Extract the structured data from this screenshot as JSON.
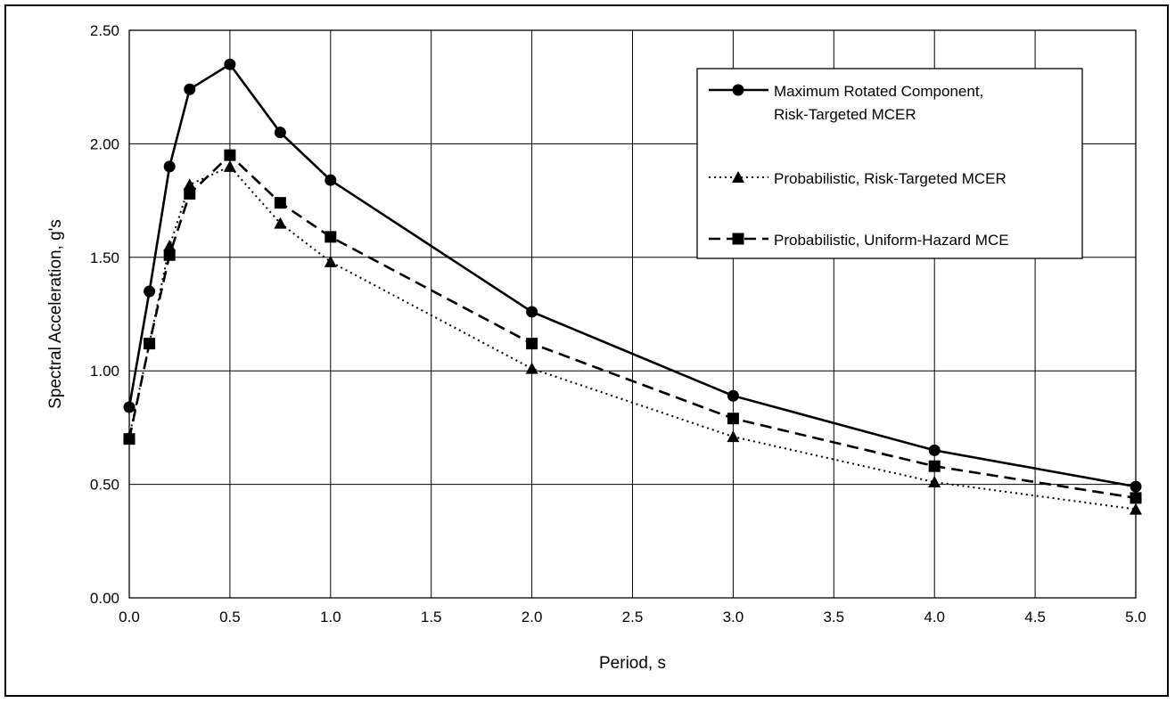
{
  "chart_data": {
    "type": "line",
    "title": "",
    "xlabel": "Period, s",
    "ylabel": "Spectral Acceleration, g's",
    "xlim": [
      0.0,
      5.0
    ],
    "ylim": [
      0.0,
      2.5
    ],
    "x_ticks": [
      "0.0",
      "0.5",
      "1.0",
      "1.5",
      "2.0",
      "2.5",
      "3.0",
      "3.5",
      "4.0",
      "4.5",
      "5.0"
    ],
    "y_ticks": [
      "0.00",
      "0.50",
      "1.00",
      "1.50",
      "2.00",
      "2.50"
    ],
    "x_tick_values": [
      0.0,
      0.5,
      1.0,
      1.5,
      2.0,
      2.5,
      3.0,
      3.5,
      4.0,
      4.5,
      5.0
    ],
    "y_tick_values": [
      0.0,
      0.5,
      1.0,
      1.5,
      2.0,
      2.5
    ],
    "grid": true,
    "legend_position": "top-right",
    "series": [
      {
        "name": "Maximum Rotated Component, Risk-Targeted MCER",
        "name_lines": [
          "Maximum Rotated Component,",
          "Risk-Targeted MCER"
        ],
        "marker": "circle",
        "line_style": "solid",
        "color": "#000000",
        "points": [
          [
            0.0,
            0.84
          ],
          [
            0.1,
            1.35
          ],
          [
            0.2,
            1.9
          ],
          [
            0.3,
            2.24
          ],
          [
            0.5,
            2.35
          ],
          [
            0.75,
            2.05
          ],
          [
            1.0,
            1.84
          ],
          [
            2.0,
            1.26
          ],
          [
            3.0,
            0.89
          ],
          [
            4.0,
            0.65
          ],
          [
            5.0,
            0.49
          ]
        ]
      },
      {
        "name": "Probabilistic, Risk-Targeted MCER",
        "name_lines": [
          "Probabilistic, Risk-Targeted MCER"
        ],
        "marker": "triangle",
        "line_style": "dotted",
        "color": "#000000",
        "points": [
          [
            0.0,
            0.71
          ],
          [
            0.1,
            1.12
          ],
          [
            0.2,
            1.55
          ],
          [
            0.3,
            1.82
          ],
          [
            0.5,
            1.9
          ],
          [
            0.75,
            1.65
          ],
          [
            1.0,
            1.48
          ],
          [
            2.0,
            1.01
          ],
          [
            3.0,
            0.71
          ],
          [
            4.0,
            0.51
          ],
          [
            5.0,
            0.39
          ]
        ]
      },
      {
        "name": "Probabilistic, Uniform-Hazard MCE",
        "name_lines": [
          "Probabilistic, Uniform-Hazard MCE"
        ],
        "marker": "square",
        "line_style": "dashed",
        "color": "#000000",
        "points": [
          [
            0.0,
            0.7
          ],
          [
            0.1,
            1.12
          ],
          [
            0.2,
            1.51
          ],
          [
            0.3,
            1.78
          ],
          [
            0.5,
            1.95
          ],
          [
            0.75,
            1.74
          ],
          [
            1.0,
            1.59
          ],
          [
            2.0,
            1.12
          ],
          [
            3.0,
            0.79
          ],
          [
            4.0,
            0.58
          ],
          [
            5.0,
            0.44
          ]
        ]
      }
    ]
  }
}
